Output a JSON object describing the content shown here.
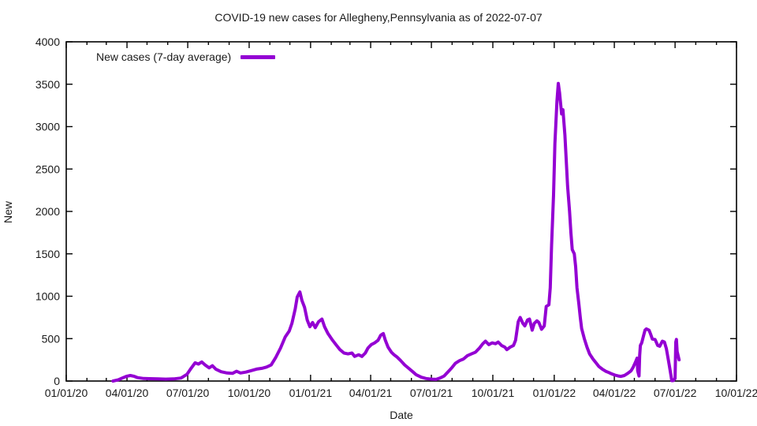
{
  "title": "COVID-19 new cases for Allegheny,Pennsylvania as of 2022-07-07",
  "axes": {
    "x_label": "Date",
    "y_label": "New"
  },
  "colors": {
    "line": "#9400D3",
    "axis": "#000000",
    "background": "#ffffff"
  },
  "chart_data": {
    "type": "line",
    "title": "COVID-19 new cases for Allegheny,Pennsylvania as of 2022-07-07",
    "xlabel": "Date",
    "ylabel": "New",
    "ylim": [
      0,
      4000
    ],
    "y_tick_step": 500,
    "x_range": [
      "2020-01-01",
      "2022-10-01"
    ],
    "x_tick_labels": [
      "01/01/20",
      "04/01/20",
      "07/01/20",
      "10/01/20",
      "01/01/21",
      "04/01/21",
      "07/01/21",
      "10/01/21",
      "01/01/22",
      "04/01/22",
      "07/01/22",
      "10/01/22"
    ],
    "y_tick_labels": [
      "0",
      "500",
      "1000",
      "1500",
      "2000",
      "2500",
      "3000",
      "3500",
      "4000"
    ],
    "grid": false,
    "legend_position": "top-left-inside",
    "series": [
      {
        "name": "New cases (7-day average)",
        "color": "#9400D3",
        "points": [
          [
            "2020-03-11",
            0
          ],
          [
            "2020-03-19",
            15
          ],
          [
            "2020-03-25",
            35
          ],
          [
            "2020-03-31",
            55
          ],
          [
            "2020-04-06",
            65
          ],
          [
            "2020-04-12",
            55
          ],
          [
            "2020-04-17",
            40
          ],
          [
            "2020-04-26",
            30
          ],
          [
            "2020-05-05",
            28
          ],
          [
            "2020-05-17",
            25
          ],
          [
            "2020-05-29",
            22
          ],
          [
            "2020-06-10",
            25
          ],
          [
            "2020-06-21",
            35
          ],
          [
            "2020-06-30",
            80
          ],
          [
            "2020-07-06",
            150
          ],
          [
            "2020-07-12",
            215
          ],
          [
            "2020-07-17",
            200
          ],
          [
            "2020-07-22",
            225
          ],
          [
            "2020-07-27",
            190
          ],
          [
            "2020-08-02",
            155
          ],
          [
            "2020-08-07",
            180
          ],
          [
            "2020-08-12",
            140
          ],
          [
            "2020-08-20",
            110
          ],
          [
            "2020-08-29",
            95
          ],
          [
            "2020-09-06",
            90
          ],
          [
            "2020-09-12",
            115
          ],
          [
            "2020-09-18",
            95
          ],
          [
            "2020-09-26",
            105
          ],
          [
            "2020-10-03",
            120
          ],
          [
            "2020-10-12",
            140
          ],
          [
            "2020-10-20",
            150
          ],
          [
            "2020-10-27",
            165
          ],
          [
            "2020-11-03",
            190
          ],
          [
            "2020-11-10",
            280
          ],
          [
            "2020-11-17",
            390
          ],
          [
            "2020-11-24",
            520
          ],
          [
            "2020-11-30",
            590
          ],
          [
            "2020-12-04",
            680
          ],
          [
            "2020-12-09",
            850
          ],
          [
            "2020-12-12",
            990
          ],
          [
            "2020-12-16",
            1050
          ],
          [
            "2020-12-19",
            950
          ],
          [
            "2020-12-23",
            870
          ],
          [
            "2020-12-27",
            720
          ],
          [
            "2020-12-31",
            640
          ],
          [
            "2021-01-04",
            690
          ],
          [
            "2021-01-08",
            630
          ],
          [
            "2021-01-13",
            700
          ],
          [
            "2021-01-18",
            730
          ],
          [
            "2021-01-22",
            640
          ],
          [
            "2021-01-27",
            560
          ],
          [
            "2021-02-02",
            490
          ],
          [
            "2021-02-08",
            430
          ],
          [
            "2021-02-14",
            370
          ],
          [
            "2021-02-20",
            330
          ],
          [
            "2021-02-26",
            320
          ],
          [
            "2021-03-04",
            330
          ],
          [
            "2021-03-08",
            290
          ],
          [
            "2021-03-14",
            310
          ],
          [
            "2021-03-19",
            290
          ],
          [
            "2021-03-24",
            330
          ],
          [
            "2021-03-28",
            390
          ],
          [
            "2021-04-02",
            430
          ],
          [
            "2021-04-07",
            450
          ],
          [
            "2021-04-12",
            480
          ],
          [
            "2021-04-16",
            540
          ],
          [
            "2021-04-20",
            560
          ],
          [
            "2021-04-23",
            480
          ],
          [
            "2021-04-27",
            400
          ],
          [
            "2021-05-02",
            340
          ],
          [
            "2021-05-06",
            310
          ],
          [
            "2021-05-11",
            280
          ],
          [
            "2021-05-16",
            240
          ],
          [
            "2021-05-22",
            190
          ],
          [
            "2021-05-28",
            150
          ],
          [
            "2021-06-03",
            110
          ],
          [
            "2021-06-08",
            75
          ],
          [
            "2021-06-16",
            45
          ],
          [
            "2021-06-23",
            30
          ],
          [
            "2021-07-01",
            22
          ],
          [
            "2021-07-08",
            20
          ],
          [
            "2021-07-14",
            35
          ],
          [
            "2021-07-20",
            60
          ],
          [
            "2021-07-26",
            110
          ],
          [
            "2021-08-01",
            160
          ],
          [
            "2021-08-06",
            210
          ],
          [
            "2021-08-12",
            240
          ],
          [
            "2021-08-18",
            260
          ],
          [
            "2021-08-24",
            300
          ],
          [
            "2021-08-30",
            320
          ],
          [
            "2021-09-05",
            340
          ],
          [
            "2021-09-11",
            390
          ],
          [
            "2021-09-16",
            440
          ],
          [
            "2021-09-20",
            470
          ],
          [
            "2021-09-25",
            430
          ],
          [
            "2021-09-30",
            450
          ],
          [
            "2021-10-05",
            440
          ],
          [
            "2021-10-09",
            460
          ],
          [
            "2021-10-14",
            420
          ],
          [
            "2021-10-19",
            400
          ],
          [
            "2021-10-22",
            370
          ],
          [
            "2021-10-27",
            400
          ],
          [
            "2021-11-01",
            420
          ],
          [
            "2021-11-04",
            480
          ],
          [
            "2021-11-08",
            700
          ],
          [
            "2021-11-11",
            750
          ],
          [
            "2021-11-15",
            680
          ],
          [
            "2021-11-18",
            650
          ],
          [
            "2021-11-22",
            720
          ],
          [
            "2021-11-25",
            730
          ],
          [
            "2021-11-29",
            600
          ],
          [
            "2021-12-02",
            680
          ],
          [
            "2021-12-06",
            710
          ],
          [
            "2021-12-09",
            690
          ],
          [
            "2021-12-13",
            610
          ],
          [
            "2021-12-17",
            650
          ],
          [
            "2021-12-20",
            880
          ],
          [
            "2021-12-24",
            900
          ],
          [
            "2021-12-26",
            1100
          ],
          [
            "2021-12-28",
            1600
          ],
          [
            "2021-12-31",
            2200
          ],
          [
            "2022-01-02",
            2800
          ],
          [
            "2022-01-05",
            3300
          ],
          [
            "2022-01-07",
            3510
          ],
          [
            "2022-01-09",
            3400
          ],
          [
            "2022-01-12",
            3150
          ],
          [
            "2022-01-14",
            3200
          ],
          [
            "2022-01-17",
            2900
          ],
          [
            "2022-01-19",
            2600
          ],
          [
            "2022-01-21",
            2300
          ],
          [
            "2022-01-24",
            2000
          ],
          [
            "2022-01-26",
            1750
          ],
          [
            "2022-01-28",
            1550
          ],
          [
            "2022-01-31",
            1500
          ],
          [
            "2022-02-02",
            1350
          ],
          [
            "2022-02-04",
            1100
          ],
          [
            "2022-02-07",
            900
          ],
          [
            "2022-02-09",
            750
          ],
          [
            "2022-02-11",
            620
          ],
          [
            "2022-02-15",
            500
          ],
          [
            "2022-02-19",
            400
          ],
          [
            "2022-02-23",
            320
          ],
          [
            "2022-02-28",
            260
          ],
          [
            "2022-03-05",
            210
          ],
          [
            "2022-03-09",
            170
          ],
          [
            "2022-03-14",
            140
          ],
          [
            "2022-03-19",
            115
          ],
          [
            "2022-03-24",
            100
          ],
          [
            "2022-03-28",
            85
          ],
          [
            "2022-04-02",
            70
          ],
          [
            "2022-04-07",
            60
          ],
          [
            "2022-04-11",
            55
          ],
          [
            "2022-04-16",
            65
          ],
          [
            "2022-04-21",
            90
          ],
          [
            "2022-04-26",
            120
          ],
          [
            "2022-04-29",
            160
          ],
          [
            "2022-05-03",
            230
          ],
          [
            "2022-05-05",
            270
          ],
          [
            "2022-05-06",
            120
          ],
          [
            "2022-05-08",
            60
          ],
          [
            "2022-05-09",
            300
          ],
          [
            "2022-05-10",
            420
          ],
          [
            "2022-05-12",
            450
          ],
          [
            "2022-05-15",
            540
          ],
          [
            "2022-05-17",
            600
          ],
          [
            "2022-05-19",
            615
          ],
          [
            "2022-05-23",
            600
          ],
          [
            "2022-05-25",
            560
          ],
          [
            "2022-05-28",
            495
          ],
          [
            "2022-06-01",
            490
          ],
          [
            "2022-06-05",
            420
          ],
          [
            "2022-06-08",
            410
          ],
          [
            "2022-06-12",
            470
          ],
          [
            "2022-06-15",
            460
          ],
          [
            "2022-06-18",
            380
          ],
          [
            "2022-06-20",
            290
          ],
          [
            "2022-06-22",
            200
          ],
          [
            "2022-06-25",
            60
          ],
          [
            "2022-06-26",
            5
          ],
          [
            "2022-06-28",
            5
          ],
          [
            "2022-07-01",
            30
          ],
          [
            "2022-07-02",
            460
          ],
          [
            "2022-07-03",
            490
          ],
          [
            "2022-07-04",
            350
          ],
          [
            "2022-07-07",
            250
          ]
        ]
      }
    ]
  }
}
